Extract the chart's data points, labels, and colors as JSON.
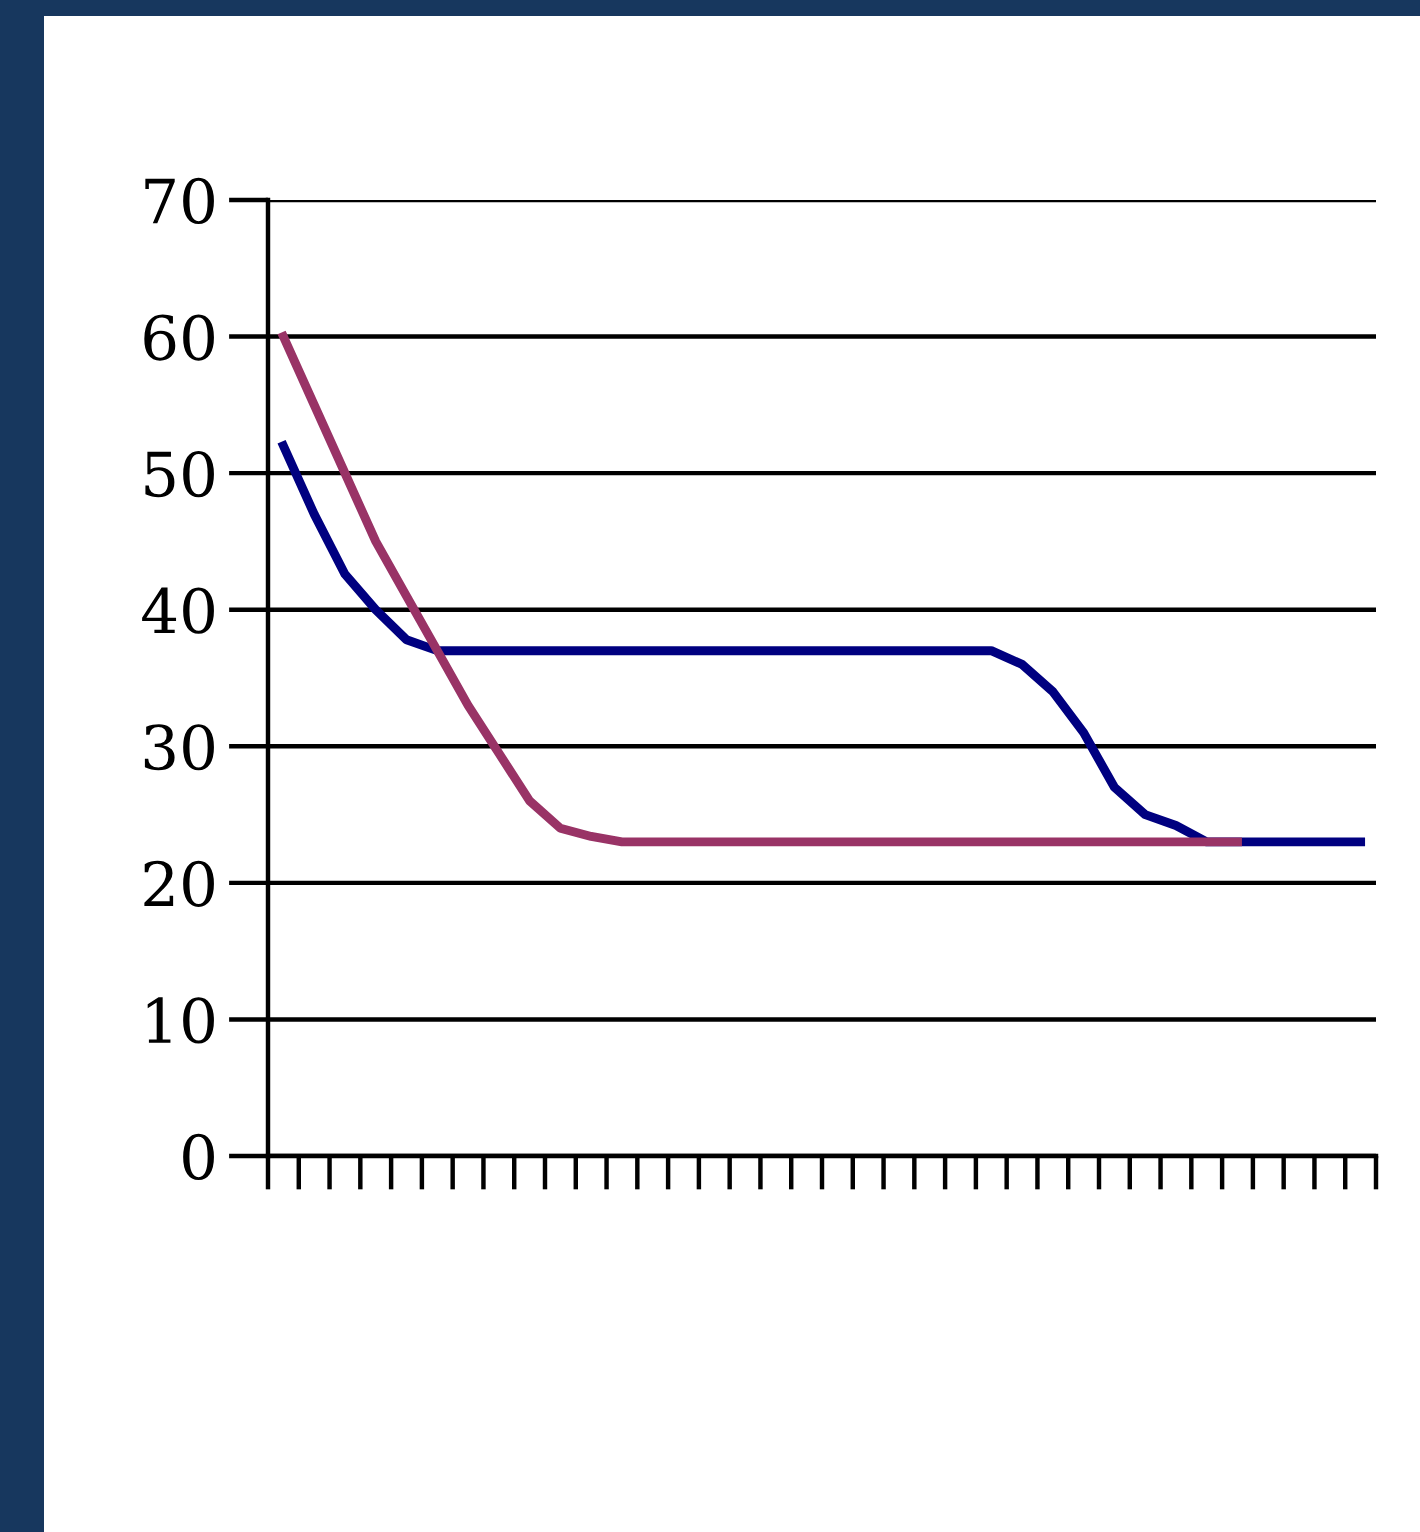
{
  "chart_data": {
    "type": "line",
    "categories": [
      null,
      null,
      null,
      null,
      null,
      null,
      null,
      null,
      null,
      null,
      null,
      null,
      null,
      null,
      null,
      null,
      null,
      null,
      null,
      null,
      null,
      null,
      null,
      null,
      null,
      null,
      null,
      null,
      null,
      null,
      null,
      null,
      null,
      null,
      null,
      null
    ],
    "series": [
      {
        "color": "#000080",
        "values": [
          52,
          47,
          42.6,
          40,
          37.8,
          37,
          37,
          37,
          37,
          37,
          37,
          37,
          37,
          37,
          37,
          37,
          37,
          37,
          37,
          37,
          37,
          37,
          37,
          37,
          36,
          34,
          31,
          27,
          25,
          24.2,
          23,
          23,
          23,
          23,
          23,
          23
        ]
      },
      {
        "color": "#993366",
        "values": [
          60,
          55,
          50,
          45,
          41,
          37,
          33,
          29.5,
          26,
          24,
          23.4,
          23,
          23,
          23,
          23,
          23,
          23,
          23,
          23,
          23,
          23,
          23,
          23,
          23,
          23,
          23,
          23,
          23,
          23,
          23,
          23,
          23,
          null,
          null,
          null,
          null
        ]
      }
    ],
    "ylim": [
      0,
      70
    ],
    "yticks": [
      0,
      10,
      20,
      30,
      40,
      50,
      60,
      70
    ],
    "grid": "y",
    "marker": "none",
    "line_style": "solid"
  }
}
